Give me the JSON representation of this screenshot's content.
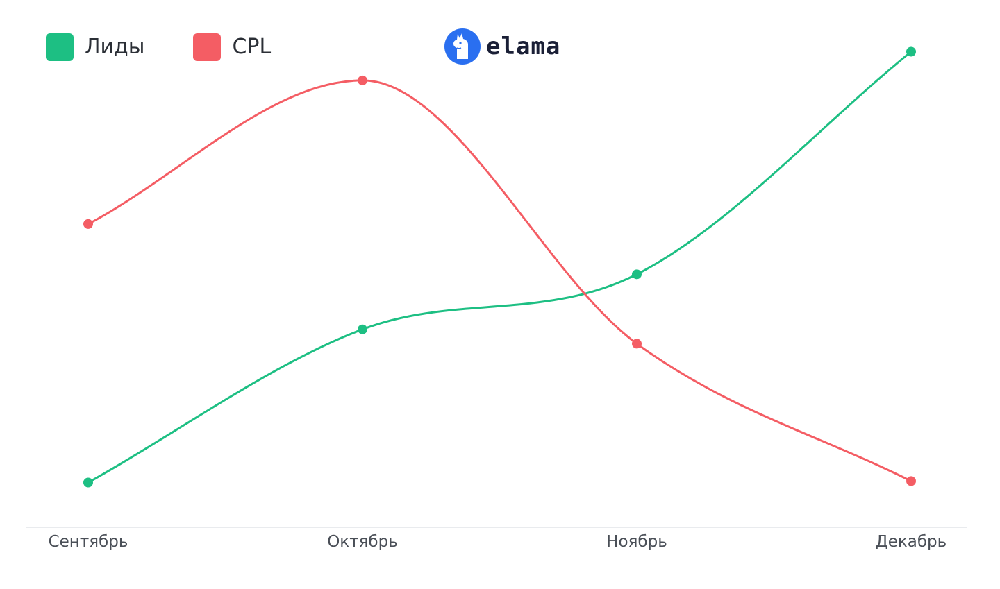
{
  "legend": {
    "items": [
      {
        "label": "Лиды",
        "color": "#1dbf83"
      },
      {
        "label": "CPL",
        "color": "#f45d64"
      }
    ]
  },
  "logo": {
    "text": "elama",
    "icon": "llama-icon",
    "color": "#2a6ff0"
  },
  "chart_data": {
    "type": "line",
    "categories": [
      "Сентябрь",
      "Октябрь",
      "Ноябрь",
      "Декабрь"
    ],
    "series": [
      {
        "name": "Лиды",
        "color": "#1dbf83",
        "values": [
          5,
          37,
          48.5,
          95
        ]
      },
      {
        "name": "CPL",
        "color": "#f45d64",
        "values": [
          59,
          89,
          34,
          5.3
        ]
      }
    ],
    "ylim": [
      0,
      100
    ],
    "grid": false,
    "legend_position": "top-left"
  }
}
